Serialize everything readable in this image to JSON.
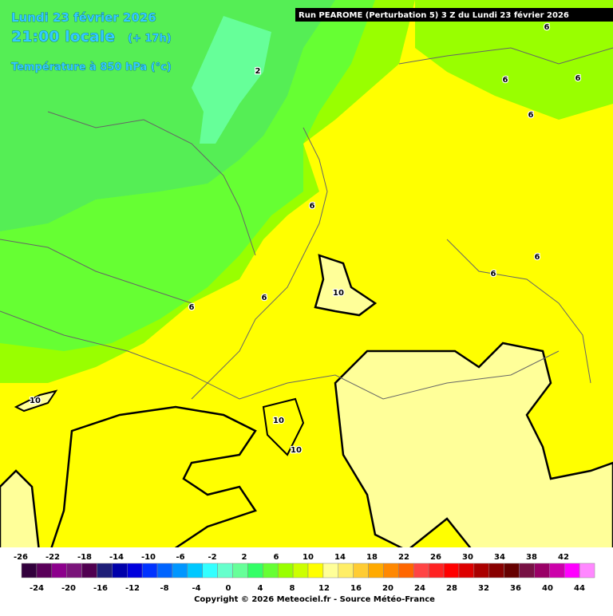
{
  "header": {
    "date": "Lundi 23 février 2026",
    "time": "21:00 locale",
    "lead": "(+ 17h)",
    "parameter": "Température à 850 hPa (°c)",
    "run": "Run PEAROME (Perturbation 5) 3 Z du Lundi 23 février 2026"
  },
  "map": {
    "contour_labels": [
      6,
      2,
      6,
      6,
      6,
      6,
      6,
      6,
      10,
      6,
      6,
      10,
      10,
      10
    ]
  },
  "scale": {
    "top_labels": [
      -26,
      -22,
      -18,
      -14,
      -10,
      -6,
      -2,
      2,
      6,
      10,
      14,
      18,
      22,
      26,
      30,
      34,
      38,
      42
    ],
    "bottom_labels": [
      -24,
      -20,
      -16,
      -12,
      -8,
      -4,
      0,
      4,
      8,
      12,
      16,
      20,
      24,
      28,
      32,
      36,
      40,
      44
    ],
    "colors": [
      "#32003c",
      "#5a005a",
      "#8c008c",
      "#7a147a",
      "#500050",
      "#1e1e78",
      "#0000aa",
      "#0000dd",
      "#0032ff",
      "#0064ff",
      "#0096ff",
      "#00c8ff",
      "#33ffff",
      "#66ffcc",
      "#66ff99",
      "#33ff66",
      "#66ff33",
      "#99ff00",
      "#ccff00",
      "#ffff00",
      "#ffff99",
      "#ffee66",
      "#ffcc33",
      "#ffaa00",
      "#ff8800",
      "#ff6600",
      "#ff4444",
      "#ff2222",
      "#ff0000",
      "#dd0000",
      "#aa0000",
      "#880000",
      "#660000",
      "#771144",
      "#990066",
      "#cc00aa",
      "#ff00ff",
      "#ff88ff"
    ]
  },
  "footer": {
    "copyright": "Copyright © 2026 Meteociel.fr - Source Météo-France"
  }
}
